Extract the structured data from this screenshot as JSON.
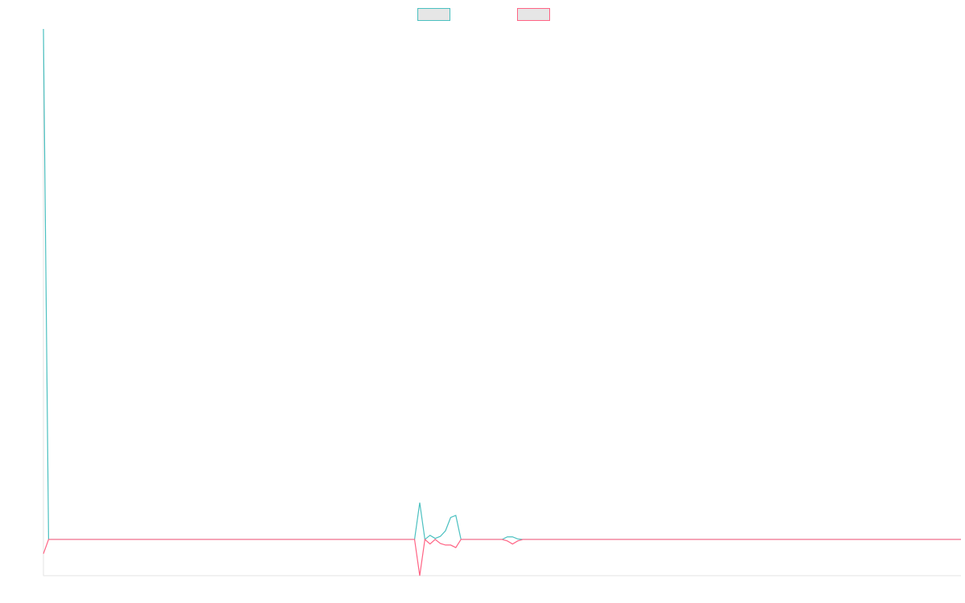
{
  "chart_data": {
    "type": "line",
    "x": [
      0,
      1,
      72,
      73,
      74,
      75,
      76,
      77,
      78,
      79,
      80,
      81,
      89,
      90,
      91,
      92,
      93,
      178
    ],
    "series": [
      {
        "color": "#4bc0c0",
        "values": [
          100,
          0,
          0,
          7.2,
          0,
          0.8,
          0.2,
          0.6,
          1.7,
          4.3,
          4.7,
          0,
          0,
          0.5,
          0.5,
          0.1,
          0,
          0
        ]
      },
      {
        "color": "#ff6384",
        "values": [
          -2.8,
          0,
          0,
          -7.1,
          0,
          -0.9,
          0,
          -0.8,
          -1.1,
          -1.1,
          -1.6,
          0,
          0,
          -0.3,
          -0.9,
          -0.3,
          0,
          0
        ]
      }
    ],
    "xlim": [
      0,
      178
    ],
    "ylim": [
      -7.1,
      100
    ],
    "legend": "top"
  }
}
